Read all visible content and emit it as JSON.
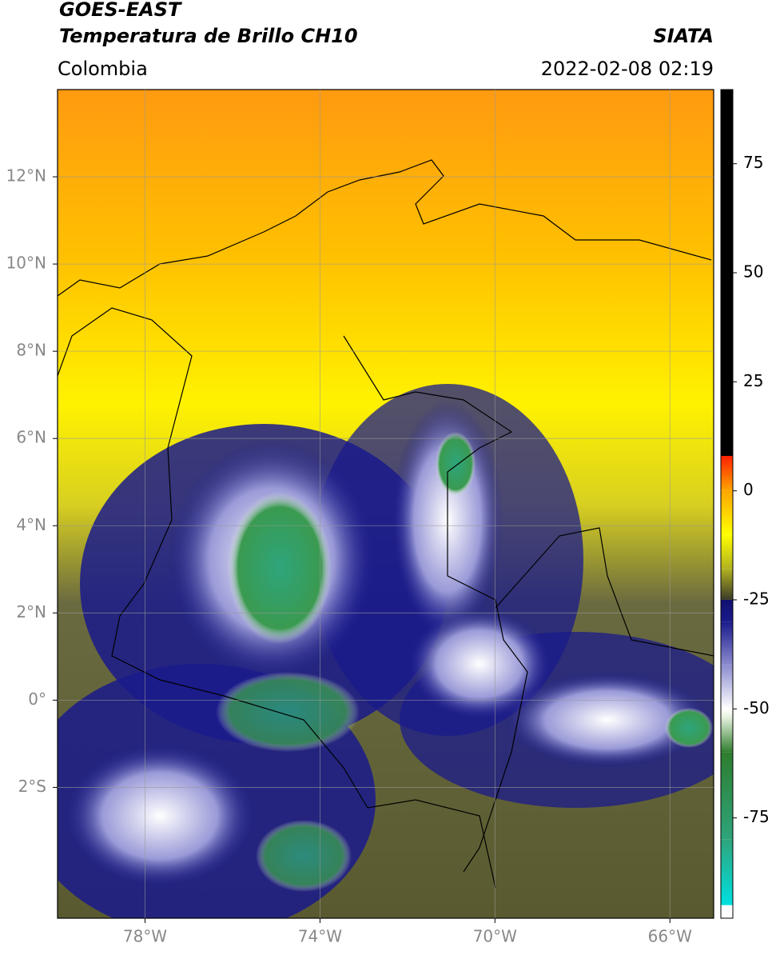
{
  "header": {
    "title": "GOES-EAST",
    "subtitle": "Temperatura de Brillo CH10",
    "source": "SIATA",
    "region": "Colombia",
    "datetime": "2022-02-08 02:19"
  },
  "map": {
    "lon_range": [
      -80,
      -65
    ],
    "lat_range": [
      -5,
      14
    ],
    "lon_ticks": [
      {
        "value": -78,
        "label": "78°W"
      },
      {
        "value": -74,
        "label": "74°W"
      },
      {
        "value": -70,
        "label": "70°W"
      },
      {
        "value": -66,
        "label": "66°W"
      }
    ],
    "lat_ticks": [
      {
        "value": 12,
        "label": "12°N"
      },
      {
        "value": 10,
        "label": "10°N"
      },
      {
        "value": 8,
        "label": "8°N"
      },
      {
        "value": 6,
        "label": "6°N"
      },
      {
        "value": 4,
        "label": "4°N"
      },
      {
        "value": 2,
        "label": "2°N"
      },
      {
        "value": 0,
        "label": "0°"
      },
      {
        "value": -2,
        "label": "2°S"
      }
    ]
  },
  "colorbar": {
    "range": [
      -98,
      92
    ],
    "ticks": [
      75,
      50,
      25,
      0,
      -25,
      -50,
      -75
    ],
    "stops": [
      {
        "value": -98,
        "color": "#ffffff"
      },
      {
        "value": -95,
        "color": "#ffffff"
      },
      {
        "value": -95,
        "color": "#00e0e0"
      },
      {
        "value": -80,
        "color": "#2ea57c"
      },
      {
        "value": -60,
        "color": "#2e7d2e"
      },
      {
        "value": -52,
        "color": "#e4f0dc"
      },
      {
        "value": -50,
        "color": "#ffffff"
      },
      {
        "value": -40,
        "color": "#8c8cd0"
      },
      {
        "value": -30,
        "color": "#1a1a8c"
      },
      {
        "value": -25,
        "color": "#101070"
      },
      {
        "value": -25,
        "color": "#3a3a2a"
      },
      {
        "value": -18,
        "color": "#b0b020"
      },
      {
        "value": -10,
        "color": "#ffff00"
      },
      {
        "value": 0,
        "color": "#ffa500"
      },
      {
        "value": 8,
        "color": "#ff2000"
      },
      {
        "value": 8,
        "color": "#000000"
      },
      {
        "value": 92,
        "color": "#000000"
      }
    ]
  }
}
